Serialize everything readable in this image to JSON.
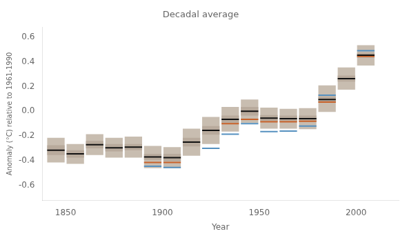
{
  "chart_data": {
    "type": "range",
    "title": "Decadal average",
    "xlabel": "Year",
    "ylabel": "Anomaly (°C) relative to 1961-1990",
    "xlim": [
      1838,
      2022
    ],
    "ylim": [
      -0.72,
      0.68
    ],
    "xticks": [
      1850,
      1900,
      1950,
      2000
    ],
    "yticks": [
      -0.6,
      -0.4,
      -0.2,
      {
        "value": 0.0,
        "label": "0.0"
      },
      0.2,
      0.4,
      0.6
    ],
    "grid": false,
    "x": [
      1845,
      1855,
      1865,
      1875,
      1885,
      1895,
      1905,
      1915,
      1925,
      1935,
      1945,
      1955,
      1965,
      1975,
      1985,
      1995,
      2005
    ],
    "series": [
      {
        "type": "range",
        "color": "#c8bdb0",
        "low": [
          -0.415,
          -0.425,
          -0.355,
          -0.375,
          -0.375,
          -0.46,
          -0.46,
          -0.36,
          -0.265,
          -0.165,
          -0.095,
          -0.14,
          -0.14,
          -0.145,
          -0.005,
          0.175,
          0.37
        ],
        "high": [
          -0.215,
          -0.265,
          -0.185,
          -0.215,
          -0.205,
          -0.28,
          -0.29,
          -0.14,
          -0.045,
          0.035,
          0.095,
          0.03,
          0.02,
          0.025,
          0.21,
          0.355,
          0.535
        ]
      },
      {
        "type": "range",
        "color": "#b8aa9c",
        "low": [
          -0.355,
          -0.375,
          -0.3,
          -0.325,
          -0.315,
          -0.395,
          -0.405,
          -0.285,
          -0.19,
          -0.095,
          -0.035,
          -0.08,
          -0.085,
          -0.085,
          0.07,
          0.24,
          0.435
        ],
        "high": [
          -0.275,
          -0.315,
          -0.24,
          -0.265,
          -0.265,
          -0.345,
          -0.345,
          -0.215,
          -0.12,
          -0.035,
          0.035,
          -0.03,
          -0.035,
          -0.035,
          0.12,
          0.29,
          0.475
        ]
      },
      {
        "type": "level",
        "color": "#c8622a",
        "values": [
          null,
          null,
          null,
          null,
          null,
          -0.415,
          -0.415,
          null,
          null,
          -0.1,
          -0.065,
          -0.085,
          -0.085,
          -0.08,
          0.075,
          null,
          0.445
        ]
      },
      {
        "type": "level",
        "color": "#5590bf",
        "values": [
          null,
          null,
          null,
          null,
          null,
          -0.445,
          -0.455,
          null,
          -0.3,
          -0.185,
          -0.1,
          -0.165,
          -0.16,
          -0.12,
          0.13,
          null,
          0.49
        ]
      },
      {
        "type": "level",
        "color": "#111111",
        "values": [
          -0.315,
          -0.345,
          -0.27,
          -0.295,
          -0.29,
          -0.37,
          -0.375,
          -0.25,
          -0.155,
          -0.065,
          0.0,
          -0.055,
          -0.06,
          -0.06,
          0.095,
          0.265,
          0.455
        ]
      }
    ]
  }
}
